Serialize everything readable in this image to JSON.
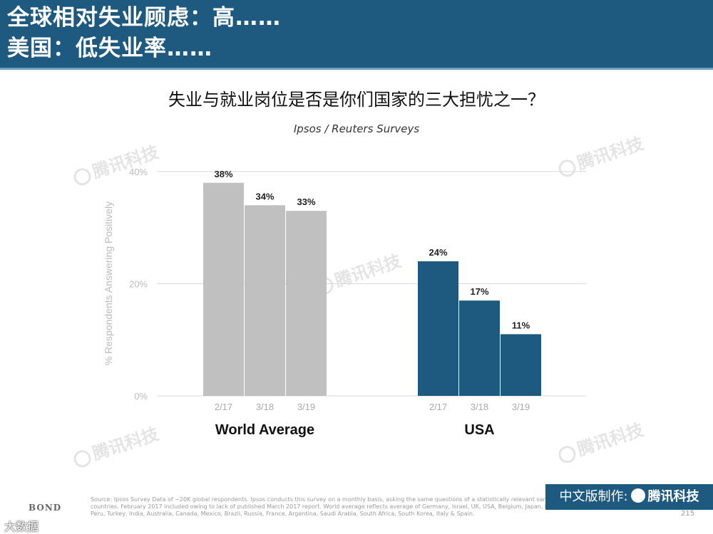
{
  "header": {
    "line1": "全球相对失业顾虑：高……",
    "line2": "美国：低失业率……"
  },
  "chart_data": {
    "type": "bar",
    "title": "失业与就业岗位是否是你们国家的三大担忧之一？",
    "subtitle": "Ipsos / Reuters Surveys",
    "ylabel": "% Respondents Answering Positively",
    "ylim": [
      0,
      40
    ],
    "yticks": [
      "0%",
      "20%",
      "40%"
    ],
    "ytick_values": [
      0,
      20,
      40
    ],
    "grid": true,
    "groups": [
      {
        "name": "World Average",
        "color": "#c0c0c0",
        "categories": [
          "2/17",
          "3/18",
          "3/19"
        ],
        "values": [
          38,
          34,
          33
        ],
        "labels": [
          "38%",
          "34%",
          "33%"
        ]
      },
      {
        "name": "USA",
        "color": "#1e5a80",
        "categories": [
          "2/17",
          "3/18",
          "3/19"
        ],
        "values": [
          24,
          17,
          11
        ],
        "labels": [
          "24%",
          "17%",
          "11%"
        ]
      }
    ]
  },
  "watermark_text": "腾讯科技",
  "source_note": "Source: Ipsos Survey Data of ~20K global respondents. Ipsos conducts this survey on a monthly basis, asking the same questions of a statistically relevant sample of people in 28 representative countries. February 2017 included owing to lack of published March 2017 report. World average reflects average of Germany, Israel, UK, USA, Belgium, Japan, Poland, Sweden, China, Hungary, Peru, Turkey, India, Australia, Canada, Mexico, Brazil, Russia, France, Argentina, Saudi Arabia, South Africa, South Korea, Italy & Spain.",
  "footer": {
    "prefix": "中文版制作:",
    "brand": "腾讯科技",
    "page_number": "215",
    "logo": "BOND",
    "corner_mark": "大数据"
  }
}
